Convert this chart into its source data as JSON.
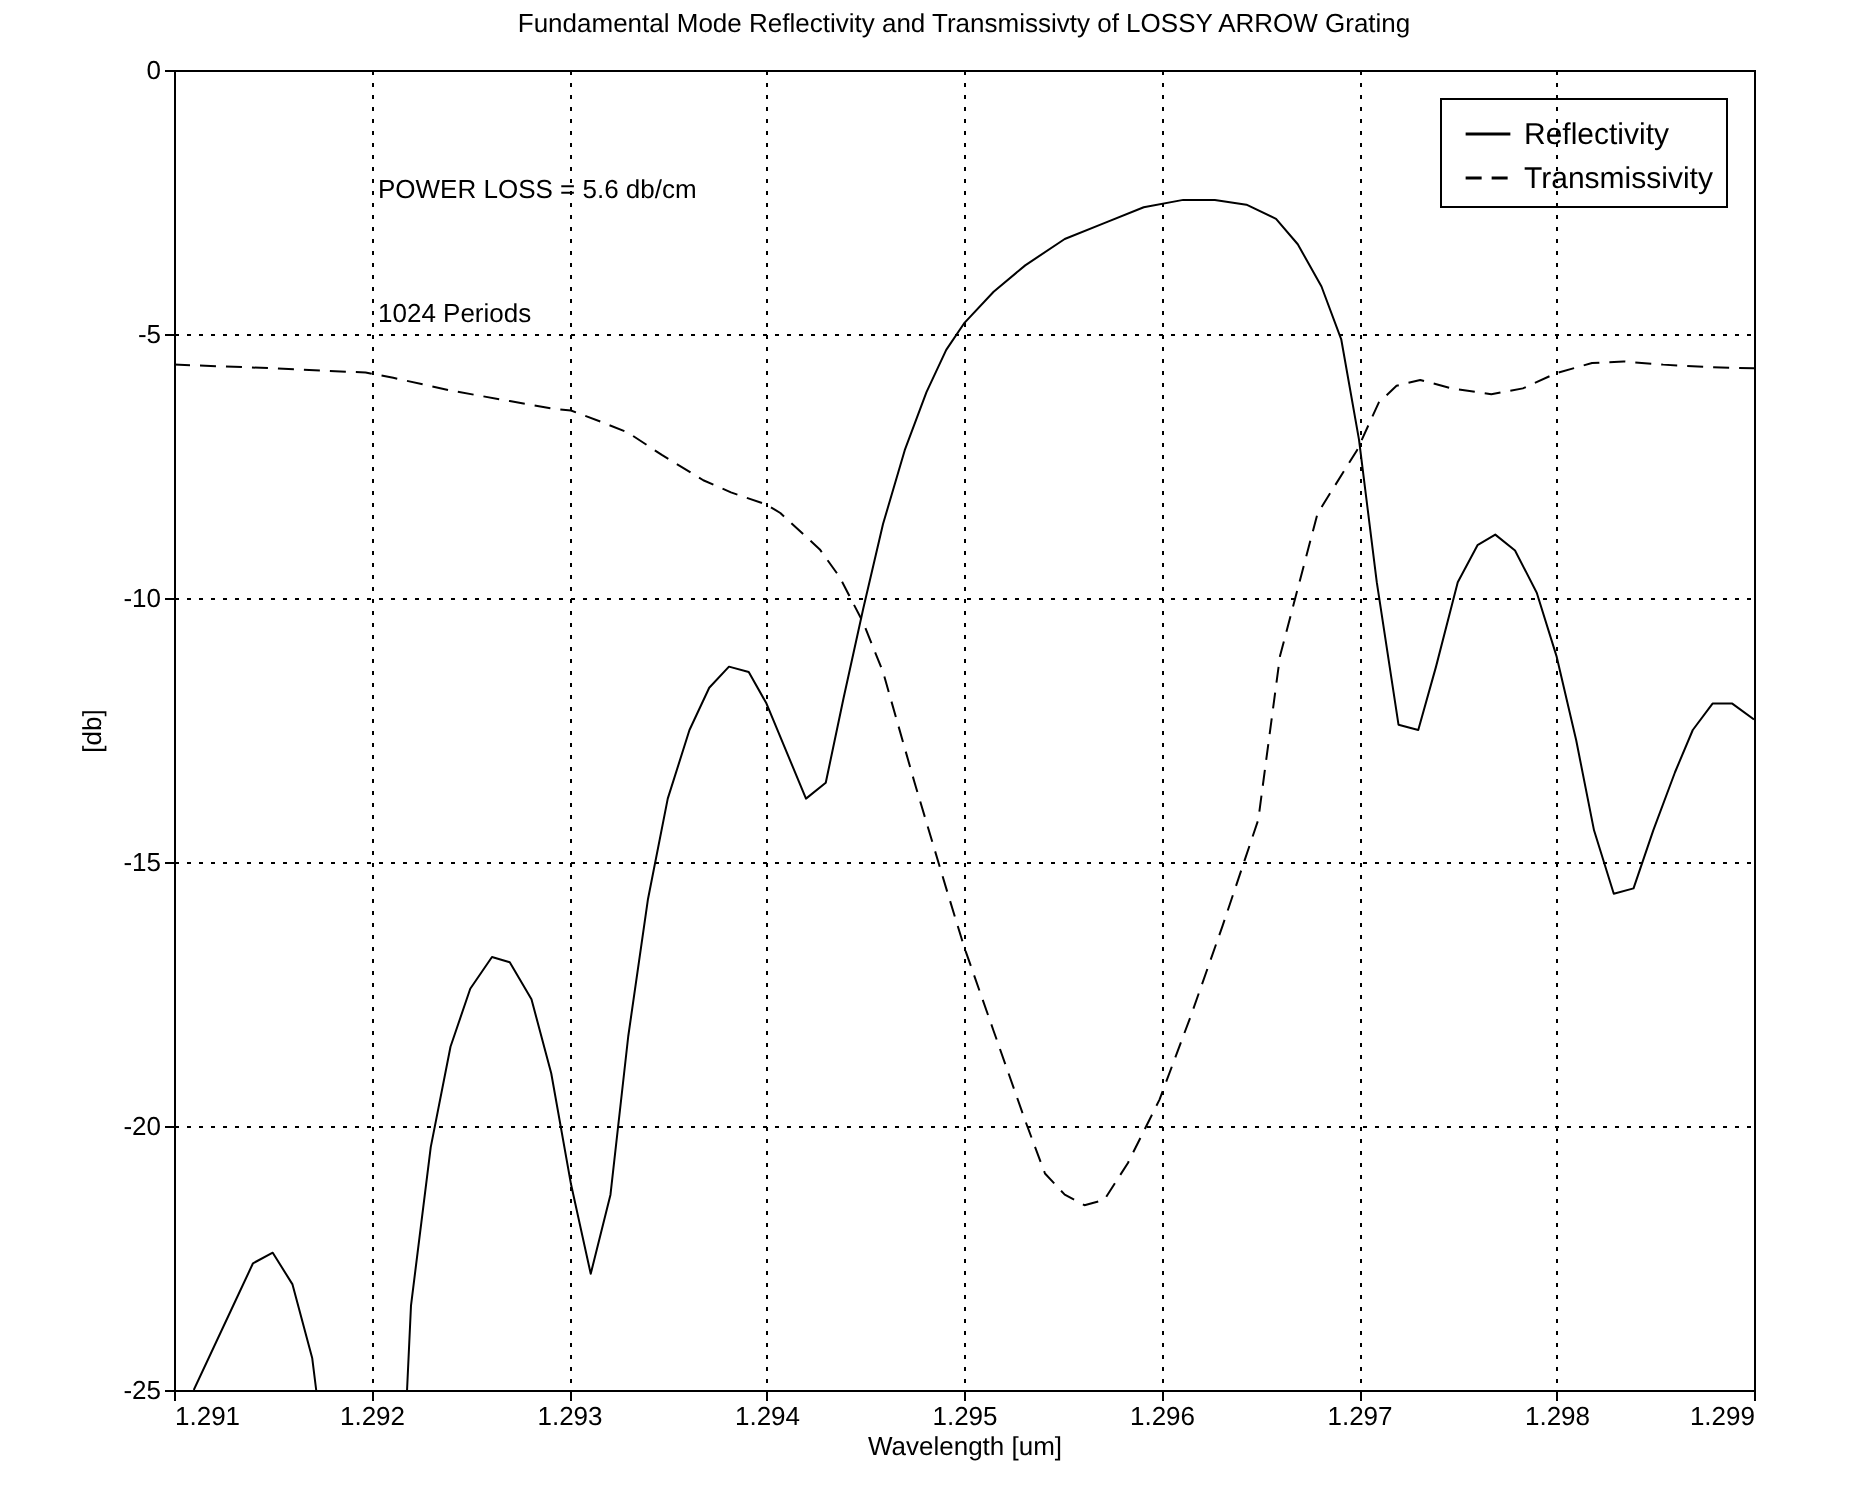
{
  "chart_data": {
    "type": "line",
    "title": "Fundamental Mode Reflectivity and Transmissivty of LOSSY ARROW Grating",
    "xlabel": "Wavelength [um]",
    "ylabel": "[db]",
    "annotations": [
      "POWER LOSS = 5.6 db/cm",
      "1024 Periods"
    ],
    "xlim": [
      1.291,
      1.299
    ],
    "xticks": [
      1.291,
      1.292,
      1.293,
      1.294,
      1.295,
      1.296,
      1.297,
      1.298,
      1.299
    ],
    "ylim": [
      -25,
      0
    ],
    "yticks": [
      -25,
      -20,
      -15,
      -10,
      -5,
      0
    ],
    "grid": true,
    "legend": "top right",
    "marker": "none",
    "series": [
      {
        "name": "Reflectivity",
        "color": "#000000",
        "line_style": "solid",
        "x": [
          1.2911,
          1.2913,
          1.2914,
          1.2915,
          1.2916,
          1.2917,
          1.29172,
          1.2919,
          1.29218,
          1.2922,
          1.2923,
          1.2924,
          1.2925,
          1.29261,
          1.2927,
          1.29281,
          1.29291,
          1.29301,
          1.29311,
          1.29321,
          1.2933,
          1.2934,
          1.2935,
          1.29361,
          1.29371,
          1.29381,
          1.29391,
          1.294,
          1.2942,
          1.2943,
          1.29439,
          1.29449,
          1.29459,
          1.2947,
          1.29481,
          1.29491,
          1.295,
          1.29515,
          1.29531,
          1.29551,
          1.29571,
          1.29591,
          1.29611,
          1.29627,
          1.29643,
          1.29658,
          1.29669,
          1.29681,
          1.29691,
          1.297,
          1.29709,
          1.2972,
          1.2973,
          1.29739,
          1.2975,
          1.2976,
          1.29769,
          1.29779,
          1.2979,
          1.298,
          1.2981,
          1.29819,
          1.29829,
          1.29839,
          1.29849,
          1.2986,
          1.29869,
          1.29879,
          1.29889,
          1.299
        ],
        "values": [
          -25,
          -23.4,
          -22.6,
          -22.4,
          -23.0,
          -24.4,
          -25,
          null,
          -25,
          -23.4,
          -20.4,
          -18.5,
          -17.4,
          -16.8,
          -16.9,
          -17.6,
          -19.0,
          -21.1,
          -22.8,
          -21.3,
          -18.3,
          -15.7,
          -13.8,
          -12.5,
          -11.7,
          -11.3,
          -11.4,
          -12.0,
          -13.8,
          -13.5,
          -11.9,
          -10.2,
          -8.6,
          -7.2,
          -6.1,
          -5.3,
          -4.8,
          -4.2,
          -3.7,
          -3.2,
          -2.9,
          -2.6,
          -2.46,
          -2.46,
          -2.55,
          -2.82,
          -3.3,
          -4.1,
          -5.1,
          -7.0,
          -9.7,
          -12.4,
          -12.5,
          -11.3,
          -9.7,
          -9.0,
          -8.8,
          -9.1,
          -9.9,
          -11.1,
          -12.7,
          -14.4,
          -15.6,
          -15.5,
          -14.4,
          -13.3,
          -12.5,
          -12.0,
          -12.0,
          -12.3
        ]
      },
      {
        "name": "Transmissivity",
        "color": "#000000",
        "line_style": "dashed",
        "x": [
          1.291,
          1.29151,
          1.29197,
          1.29211,
          1.2924,
          1.2927,
          1.29291,
          1.29301,
          1.29316,
          1.2933,
          1.29347,
          1.29368,
          1.29382,
          1.294,
          1.29407,
          1.29427,
          1.29437,
          1.29449,
          1.29459,
          1.29475,
          1.29491,
          1.295,
          1.29515,
          1.29531,
          1.29541,
          1.29551,
          1.29561,
          1.29571,
          1.29583,
          1.29599,
          1.29615,
          1.29631,
          1.29649,
          1.2966,
          1.29679,
          1.29699,
          1.2971,
          1.29719,
          1.29731,
          1.29747,
          1.29767,
          1.29783,
          1.298,
          1.29818,
          1.29834,
          1.29854,
          1.29878,
          1.299
        ],
        "values": [
          -5.58,
          -5.65,
          -5.73,
          -5.83,
          -6.07,
          -6.27,
          -6.41,
          -6.45,
          -6.66,
          -6.87,
          -7.29,
          -7.77,
          -8.0,
          -8.23,
          -8.39,
          -9.08,
          -9.6,
          -10.47,
          -11.4,
          -13.5,
          -15.5,
          -16.6,
          -18.2,
          -19.9,
          -20.9,
          -21.3,
          -21.5,
          -21.4,
          -20.7,
          -19.5,
          -17.9,
          -16.2,
          -14.2,
          -11.1,
          -8.4,
          -7.2,
          -6.3,
          -5.98,
          -5.87,
          -6.03,
          -6.14,
          -6.03,
          -5.74,
          -5.55,
          -5.52,
          -5.58,
          -5.63,
          -5.65
        ]
      }
    ]
  }
}
